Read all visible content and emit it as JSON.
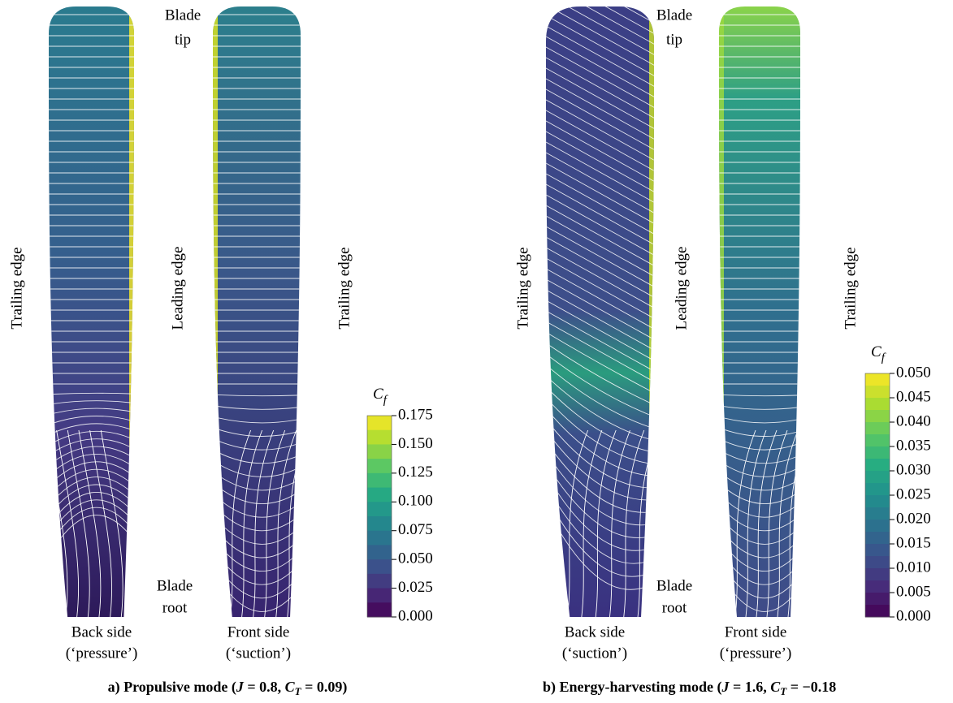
{
  "panels": [
    {
      "caption": [
        "a) Propulsive mode (",
        "J",
        " = 0.8, ",
        "C",
        "T",
        " = 0.09)"
      ],
      "tip": [
        "Blade",
        "tip"
      ],
      "root": [
        "Blade",
        "root"
      ],
      "edges": [
        "Trailing edge",
        "Leading edge",
        "Trailing edge"
      ],
      "sides": [
        [
          "Back side",
          "(‘pressure’)"
        ],
        [
          "Front side",
          "(‘suction’)"
        ]
      ],
      "colorbar": {
        "title": [
          "C",
          "f"
        ],
        "ticks": [
          "0.175",
          "0.150",
          "0.125",
          "0.100",
          "0.075",
          "0.050",
          "0.025",
          "0.000"
        ]
      }
    },
    {
      "caption": [
        "b) Energy-harvesting mode (",
        "J",
        " = 1.6, ",
        "C",
        "T",
        " = −0.18"
      ],
      "tip": [
        "Blade",
        "tip"
      ],
      "root": [
        "Blade",
        "root"
      ],
      "edges": [
        "Trailing edge",
        "Leading edge",
        "Trailing edge"
      ],
      "sides": [
        [
          "Back side",
          "(‘suction’)"
        ],
        [
          "Front side",
          "(‘pressure’)"
        ]
      ],
      "colorbar": {
        "title": [
          "C",
          "f"
        ],
        "ticks": [
          "0.050",
          "0.045",
          "0.040",
          "0.035",
          "0.030",
          "0.025",
          "0.020",
          "0.015",
          "0.010",
          "0.005",
          "0.000"
        ]
      }
    }
  ]
}
